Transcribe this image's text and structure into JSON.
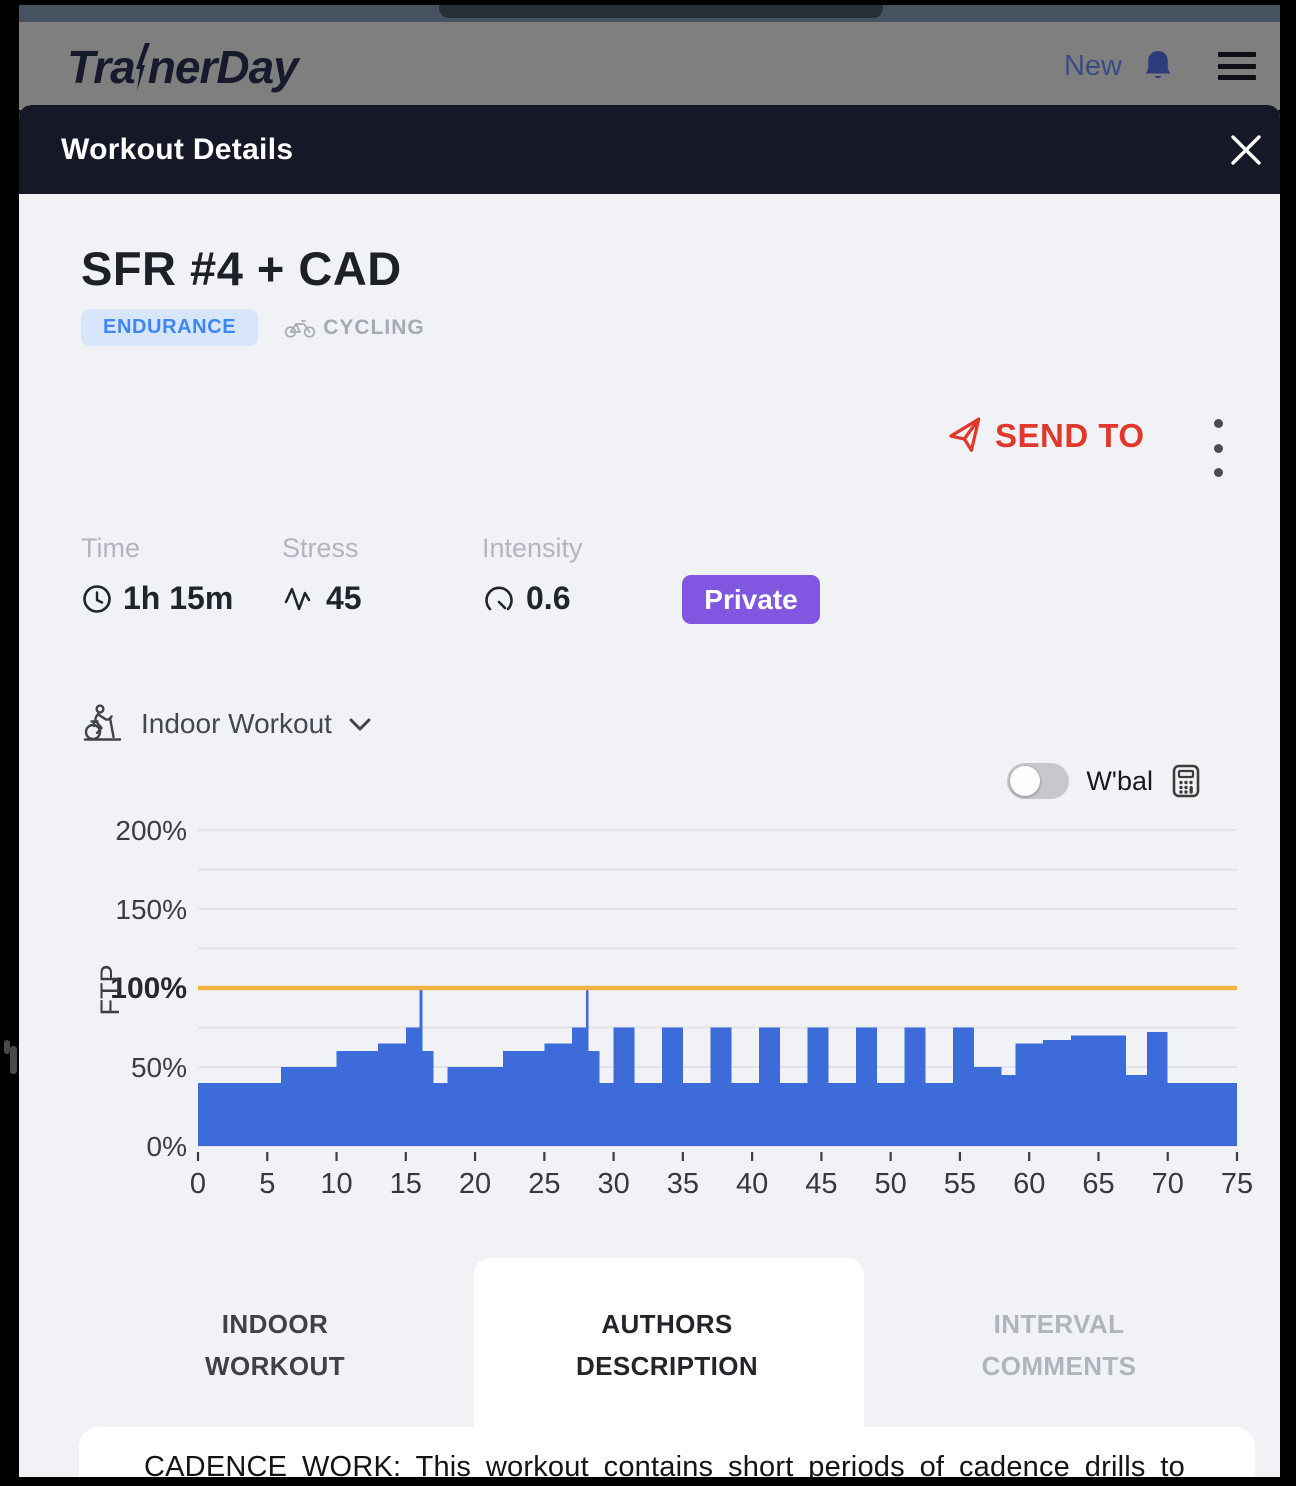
{
  "top_nav": {
    "brand_prefix": "Tra",
    "brand_suffix": "nerDay",
    "new_label": "New"
  },
  "modal": {
    "title": "Workout Details"
  },
  "workout": {
    "title": "SFR #4 + CAD",
    "type_badge": "ENDURANCE",
    "sport": "CYCLING",
    "send_to_label": "SEND TO",
    "visibility": "Private",
    "mode_selector": "Indoor Workout",
    "wbal_label": "W'bal",
    "stats": [
      {
        "label": "Time",
        "value": "1h 15m",
        "icon": "clock-icon"
      },
      {
        "label": "Stress",
        "value": "45",
        "icon": "pulse-icon"
      },
      {
        "label": "Intensity",
        "value": "0.6",
        "icon": "gauge-icon"
      }
    ]
  },
  "tabs": [
    {
      "label": "INDOOR WORKOUT",
      "active": false
    },
    {
      "label": "AUTHORS DESCRIPTION",
      "active": true
    },
    {
      "label": "INTERVAL COMMENTS",
      "active": false
    }
  ],
  "description_preview": "CADENCE WORK: This workout contains short periods of cadence drills to",
  "colors": {
    "accent_blue_badge_bg": "#d8e6fb",
    "accent_blue_badge_text": "#3e86f5",
    "send_red": "#e0392b",
    "private_purple": "#8156e0",
    "modal_header_dark": "#171827",
    "page_bg": "#f1f2f6"
  },
  "chart_data": {
    "type": "area",
    "ylabel": "FTP",
    "x_axis": {
      "min": 0,
      "max": 75,
      "ticks": [
        0,
        5,
        10,
        15,
        20,
        25,
        30,
        35,
        40,
        45,
        50,
        55,
        60,
        65,
        70,
        75
      ]
    },
    "y_axis": {
      "min": 0,
      "max": 215,
      "ticks": [
        {
          "label": "0%",
          "value": 0,
          "bold": false
        },
        {
          "label": "50%",
          "value": 50,
          "bold": false
        },
        {
          "label": "100%",
          "value": 100,
          "bold": true
        },
        {
          "label": "150%",
          "value": 150,
          "bold": false
        },
        {
          "label": "200%",
          "value": 200,
          "bold": false
        }
      ],
      "gridlines": [
        0,
        25,
        50,
        75,
        125,
        150,
        175,
        200
      ]
    },
    "ftp_line": {
      "value": 100
    },
    "segments": [
      {
        "start": 0,
        "end": 6,
        "percent": 40
      },
      {
        "start": 6,
        "end": 10,
        "percent": 50
      },
      {
        "start": 10,
        "end": 13,
        "percent": 60
      },
      {
        "start": 13,
        "end": 15,
        "percent": 65
      },
      {
        "start": 15,
        "end": 16,
        "percent": 75
      },
      {
        "start": 16,
        "end": 16.2,
        "percent": 100
      },
      {
        "start": 16.2,
        "end": 17,
        "percent": 60
      },
      {
        "start": 17,
        "end": 18,
        "percent": 40
      },
      {
        "start": 18,
        "end": 22,
        "percent": 50
      },
      {
        "start": 22,
        "end": 25,
        "percent": 60
      },
      {
        "start": 25,
        "end": 27,
        "percent": 65
      },
      {
        "start": 27,
        "end": 28,
        "percent": 75
      },
      {
        "start": 28,
        "end": 28.2,
        "percent": 100
      },
      {
        "start": 28.2,
        "end": 29,
        "percent": 60
      },
      {
        "start": 29,
        "end": 30,
        "percent": 40
      },
      {
        "start": 30,
        "end": 31.5,
        "percent": 75
      },
      {
        "start": 31.5,
        "end": 33.5,
        "percent": 40
      },
      {
        "start": 33.5,
        "end": 35,
        "percent": 75
      },
      {
        "start": 35,
        "end": 37,
        "percent": 40
      },
      {
        "start": 37,
        "end": 38.5,
        "percent": 75
      },
      {
        "start": 38.5,
        "end": 40.5,
        "percent": 40
      },
      {
        "start": 40.5,
        "end": 42,
        "percent": 75
      },
      {
        "start": 42,
        "end": 44,
        "percent": 40
      },
      {
        "start": 44,
        "end": 45.5,
        "percent": 75
      },
      {
        "start": 45.5,
        "end": 47.5,
        "percent": 40
      },
      {
        "start": 47.5,
        "end": 49,
        "percent": 75
      },
      {
        "start": 49,
        "end": 51,
        "percent": 40
      },
      {
        "start": 51,
        "end": 52.5,
        "percent": 75
      },
      {
        "start": 52.5,
        "end": 54.5,
        "percent": 40
      },
      {
        "start": 54.5,
        "end": 56,
        "percent": 75
      },
      {
        "start": 56,
        "end": 58,
        "percent": 50
      },
      {
        "start": 58,
        "end": 59,
        "percent": 45
      },
      {
        "start": 59,
        "end": 61,
        "percent": 65
      },
      {
        "start": 61,
        "end": 63,
        "percent": 67
      },
      {
        "start": 63,
        "end": 67,
        "percent": 70
      },
      {
        "start": 67,
        "end": 68.5,
        "percent": 45
      },
      {
        "start": 68.5,
        "end": 70,
        "percent": 72
      },
      {
        "start": 70,
        "end": 75,
        "percent": 40
      }
    ],
    "colors": {
      "bar": "#3d6cda",
      "ftp_line": "#f0b545",
      "grid": "#e2e3e8"
    }
  }
}
